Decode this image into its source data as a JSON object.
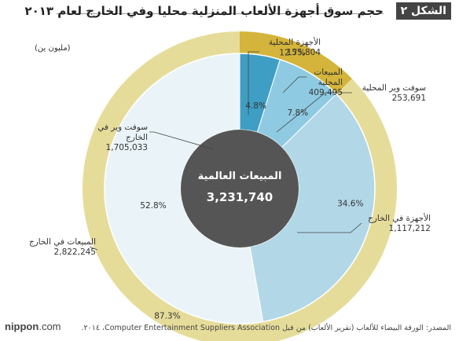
{
  "header": {
    "figure_label": "الشكل ٢",
    "title": "حجم سوق أجهزة الألعاب المنزلية محليا وفي الخارج لعام ٢٠١٣"
  },
  "unit": "(مليون ين)",
  "colors": {
    "outer_domestic": "#d4b43a",
    "outer_overseas": "#e6dc9a",
    "inner_domestic_hw": "#3f9ec4",
    "inner_domestic_sw": "#8ecbe2",
    "inner_overseas_hw": "#b2d8e8",
    "inner_overseas_sw": "#eaf4f8",
    "center": "#555555"
  },
  "chart_data": {
    "type": "donut",
    "center": {
      "label": "المبيعات العالمية",
      "value": "3,231,740"
    },
    "outer_ring": [
      {
        "name": "المبيعات المحلية",
        "value": 409495,
        "percent_label": "12.7%"
      },
      {
        "name": "المبيعات في الخارج",
        "value": 2822245,
        "percent_label": "87.3%"
      }
    ],
    "inner_ring": [
      {
        "name": "الأجهزة المحلية",
        "value": 155804,
        "percent_label": "4.8%"
      },
      {
        "name": "سوفت وير المحلية",
        "value": 253691,
        "percent_label": "7.8%"
      },
      {
        "name": "الأجهزة في الخارج",
        "value": 1117212,
        "percent_label": "34.6%"
      },
      {
        "name": "سوفت وير في الخارج",
        "value": 1705033,
        "percent_label": "52.8%"
      }
    ],
    "labels": {
      "domestic_hw": {
        "name": "الأجهزة المحلية",
        "value": "155,804"
      },
      "domestic_sales": {
        "name": "المبيعات المحلية",
        "value": "409,495"
      },
      "domestic_sw": {
        "name": "سوفت وير المحلية",
        "value": "253,691"
      },
      "overseas_sw": {
        "name": "سوفت وير في الخارج",
        "value": "1,705,033"
      },
      "overseas_hw": {
        "name": "الأجهزة في الخارج",
        "value": "1,117,212"
      },
      "overseas_sales": {
        "name": "المبيعات في الخارج",
        "value": "2,822,245"
      }
    }
  },
  "footer": {
    "logo_main": "nippon",
    "logo_tld": ".com",
    "source": "المصدر: الورقة البيضاء للألعاب (تقرير الألعاب) من قبل Computer Entertainment Suppliers Association، ٢٠١٤."
  }
}
